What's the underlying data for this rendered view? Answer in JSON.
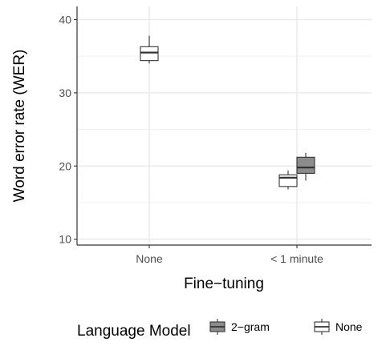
{
  "chart_data": {
    "type": "boxplot",
    "title": "",
    "xlabel": "Fine−tuning",
    "ylabel": "Word error rate (WER)",
    "categories": [
      "None",
      "< 1 minute"
    ],
    "ylim": [
      9.2,
      41.8
    ],
    "yticks": [
      10,
      20,
      30,
      40
    ],
    "grid": true,
    "legend_position": "bottom",
    "legend_title": "Language Model",
    "colors": {
      "2-gram": "#8c8c8c",
      "None": "#ffffff",
      "stroke": "#333333",
      "grid": "#ebebeb",
      "axis": "#333333"
    },
    "series": [
      {
        "name": "2−gram",
        "key": "2-gram",
        "boxes": [
          {
            "category": "< 1 minute",
            "min": 18.0,
            "q1": 19.0,
            "median": 19.8,
            "q3": 21.2,
            "max": 21.8
          }
        ]
      },
      {
        "name": "None",
        "key": "None",
        "boxes": [
          {
            "category": "None",
            "min": 34.0,
            "q1": 34.4,
            "median": 35.5,
            "q3": 36.3,
            "max": 37.8
          },
          {
            "category": "< 1 minute",
            "min": 16.8,
            "q1": 17.2,
            "median": 18.4,
            "q3": 18.8,
            "max": 19.4
          }
        ]
      }
    ]
  }
}
